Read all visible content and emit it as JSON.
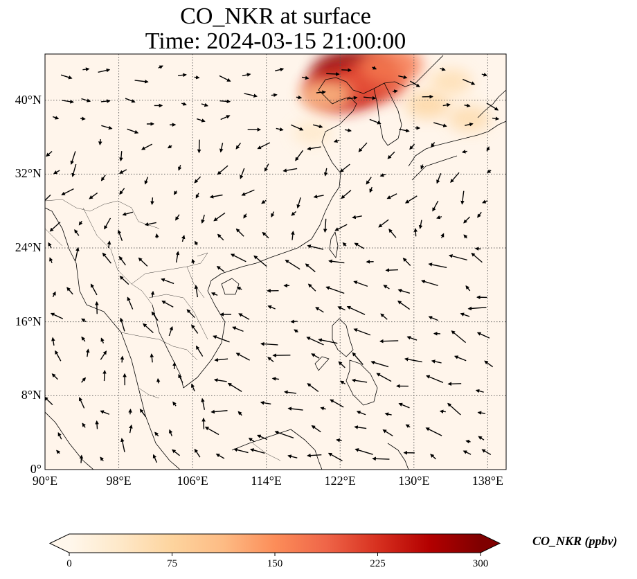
{
  "title": {
    "line1": "CO_NKR at surface",
    "line2": "Time: 2024-03-15 21:00:00"
  },
  "map": {
    "extent_lon": [
      90,
      140
    ],
    "extent_lat": [
      0,
      45
    ],
    "gridlines": "dotted",
    "lat_ticks": [
      {
        "value": 0,
        "label": "0°"
      },
      {
        "value": 8,
        "label": "8°N"
      },
      {
        "value": 16,
        "label": "16°N"
      },
      {
        "value": 24,
        "label": "24°N"
      },
      {
        "value": 32,
        "label": "32°N"
      },
      {
        "value": 40,
        "label": "40°N"
      }
    ],
    "lon_ticks": [
      {
        "value": 90,
        "label": "90°E"
      },
      {
        "value": 98,
        "label": "98°E"
      },
      {
        "value": 106,
        "label": "106°E"
      },
      {
        "value": 114,
        "label": "114°E"
      },
      {
        "value": 122,
        "label": "122°E"
      },
      {
        "value": 130,
        "label": "130°E"
      },
      {
        "value": 138,
        "label": "138°E"
      }
    ],
    "background_color": "#fff5eb",
    "coastline_color": "#000000",
    "concentration_hotspots": [
      {
        "lon": 123.5,
        "lat": 42.8,
        "value": 290
      },
      {
        "lon": 122.2,
        "lat": 41.2,
        "value": 240
      },
      {
        "lon": 125.5,
        "lat": 42.0,
        "value": 200
      },
      {
        "lon": 127.5,
        "lat": 43.8,
        "value": 170
      },
      {
        "lon": 120.5,
        "lat": 40.6,
        "value": 110
      },
      {
        "lon": 131.5,
        "lat": 39.5,
        "value": 70
      },
      {
        "lon": 136.0,
        "lat": 38.0,
        "value": 60
      },
      {
        "lon": 119.0,
        "lat": 36.5,
        "value": 35
      },
      {
        "lon": 134.0,
        "lat": 42.0,
        "value": 55
      }
    ],
    "wind_field": "southeast-asia-surface-winds"
  },
  "colorbar": {
    "label": "CO_NKR (ppbv)",
    "cmap": "OrRd",
    "range": [
      0,
      300
    ],
    "extend": "both",
    "ticks": [
      "0",
      "75",
      "150",
      "225",
      "300"
    ],
    "colors": [
      "#fff7ec",
      "#fee8c8",
      "#fdd49e",
      "#fdbb84",
      "#fc8d59",
      "#ef6548",
      "#d7301f",
      "#b30000",
      "#7f0000"
    ]
  }
}
